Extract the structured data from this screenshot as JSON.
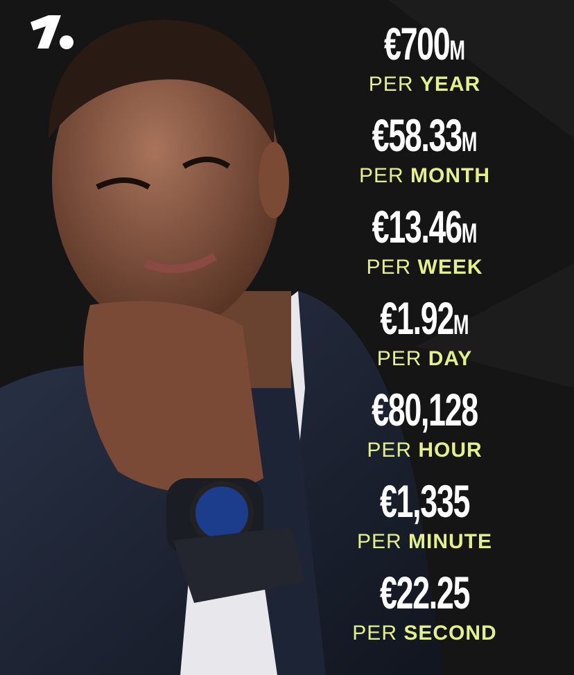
{
  "brand": {
    "logo": "onefootball-logo",
    "accent": "#e4f08a"
  },
  "stats": [
    {
      "value": "€700",
      "unit": "M",
      "prefix": "PER",
      "period": "YEAR"
    },
    {
      "value": "€58.33",
      "unit": "M",
      "prefix": "PER",
      "period": "MONTH"
    },
    {
      "value": "€13.46",
      "unit": "M",
      "prefix": "PER",
      "period": "WEEK"
    },
    {
      "value": "€1.92",
      "unit": "M",
      "prefix": "PER",
      "period": "DAY"
    },
    {
      "value": "€80,128",
      "unit": "",
      "prefix": "PER",
      "period": "HOUR"
    },
    {
      "value": "€1,335",
      "unit": "",
      "prefix": "PER",
      "period": "MINUTE"
    },
    {
      "value": "€22.25",
      "unit": "",
      "prefix": "PER",
      "period": "SECOND"
    }
  ]
}
